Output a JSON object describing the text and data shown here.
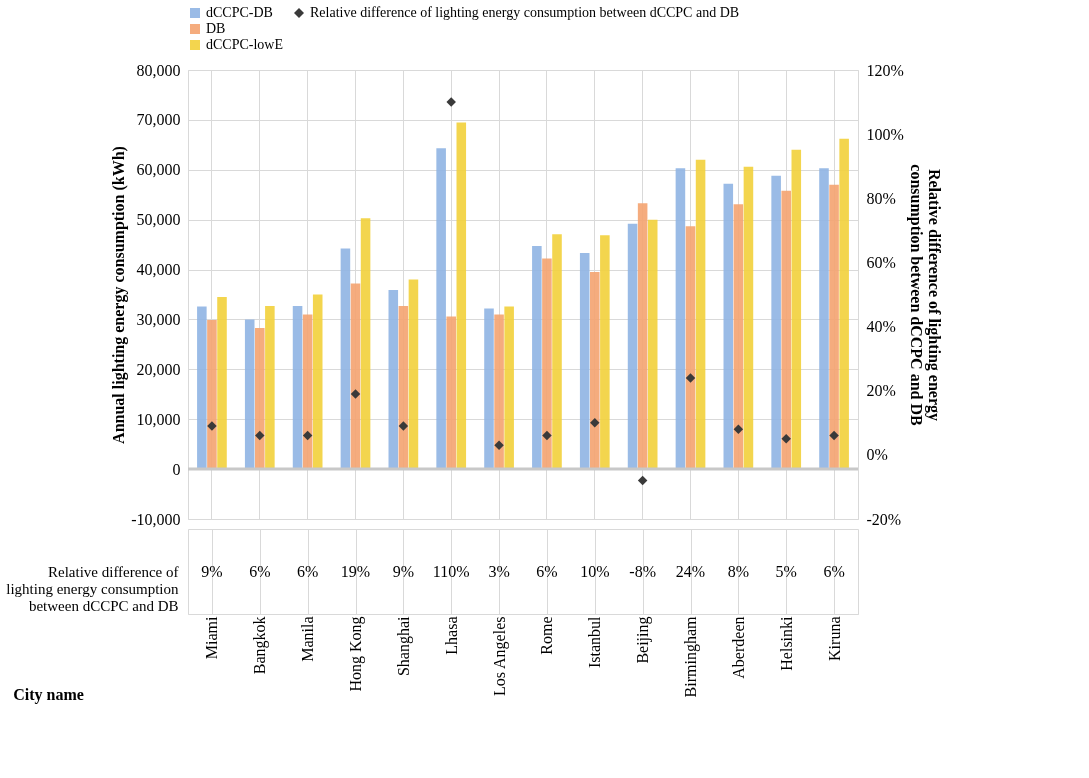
{
  "chart_data": {
    "type": "bar",
    "categories": [
      "Miami",
      "Bangkok",
      "Manila",
      "Hong Kong",
      "Shanghai",
      "Lhasa",
      "Los Angeles",
      "Rome",
      "Istanbul",
      "Beijing",
      "Birmingham",
      "Aberdeen",
      "Helsinki",
      "Kiruna"
    ],
    "xlabel": "City name",
    "ylabel": "Annual lighting energy consumption (kWh)",
    "y2label": "Relative difference of lighting energy consumption between dCCPC and DB",
    "series": [
      {
        "name": "dCCPC-DB",
        "color": "#8fb4e3",
        "values": [
          32600,
          30000,
          32700,
          44200,
          35900,
          64300,
          32200,
          44700,
          43300,
          49200,
          60300,
          57200,
          58800,
          60300
        ]
      },
      {
        "name": "DB",
        "color": "#f4a370",
        "values": [
          29900,
          28300,
          31000,
          37200,
          32700,
          30600,
          31000,
          42200,
          39500,
          53300,
          48700,
          53100,
          55800,
          57000
        ]
      },
      {
        "name": "dCCPC-lowE",
        "color": "#f2d03b",
        "values": [
          34500,
          32700,
          35000,
          50300,
          38000,
          69500,
          32600,
          47100,
          46900,
          50000,
          62000,
          60600,
          64000,
          66200
        ]
      },
      {
        "name": "Relative difference of lighting energy consumption between dCCPC and DB",
        "type": "scatter",
        "axis": "y2",
        "color": "#3a3a3a",
        "marker": "diamond",
        "values": [
          9,
          6,
          6,
          19,
          9,
          110,
          3,
          6,
          10,
          -8,
          24,
          8,
          5,
          6
        ],
        "value_labels": [
          "9%",
          "6%",
          "6%",
          "19%",
          "9%",
          "110%",
          "3%",
          "6%",
          "10%",
          "-8%",
          "24%",
          "8%",
          "5%",
          "6%"
        ]
      }
    ],
    "ylim": [
      -10000,
      80000
    ],
    "yticks": [
      {
        "value": -10000,
        "label": "-10,000"
      },
      0,
      {
        "value": 10000,
        "label": "10,000"
      },
      {
        "value": 20000,
        "label": "20,000"
      },
      {
        "value": 30000,
        "label": "30,000"
      },
      {
        "value": 40000,
        "label": "40,000"
      },
      {
        "value": 50000,
        "label": "50,000"
      },
      {
        "value": 60000,
        "label": "60,000"
      },
      {
        "value": 70000,
        "label": "70,000"
      },
      {
        "value": 80000,
        "label": "80,000"
      }
    ],
    "y2lim": [
      -20,
      120
    ],
    "y2ticks": [
      {
        "value": -20,
        "label": "-20%"
      },
      {
        "value": 0,
        "label": "0%"
      },
      {
        "value": 20,
        "label": "20%"
      },
      {
        "value": 40,
        "label": "40%"
      },
      {
        "value": 60,
        "label": "60%"
      },
      {
        "value": 80,
        "label": "80%"
      },
      {
        "value": 100,
        "label": "100%"
      },
      {
        "value": 120,
        "label": "120%"
      }
    ],
    "ref_lines": [
      {
        "axis": "y",
        "value": 0,
        "color": "#c8c8c8"
      }
    ],
    "grid": true,
    "legend": "top"
  }
}
